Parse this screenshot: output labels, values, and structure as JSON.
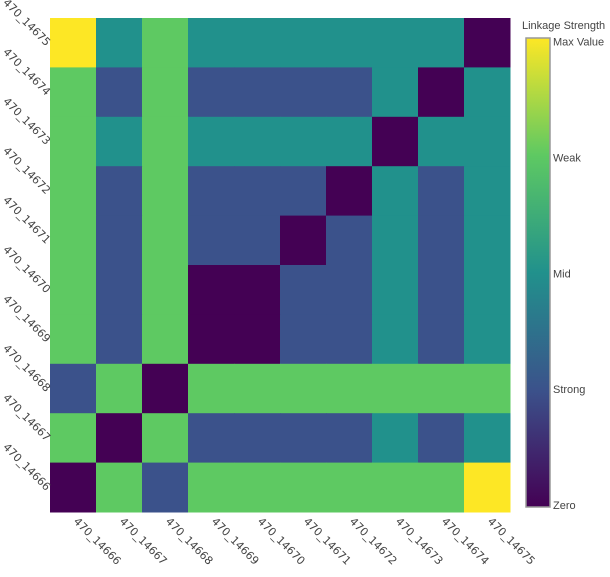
{
  "chart_data": {
    "type": "heatmap",
    "x_categories": [
      "470_14666",
      "470_14667",
      "470_14668",
      "470_14669",
      "470_14670",
      "470_14671",
      "470_14672",
      "470_14673",
      "470_14674",
      "470_14675"
    ],
    "y_categories": [
      "470_14675",
      "470_14674",
      "470_14673",
      "470_14672",
      "470_14671",
      "470_14670",
      "470_14669",
      "470_14668",
      "470_14667",
      "470_14666"
    ],
    "z": [
      [
        4,
        2,
        3,
        2,
        2,
        2,
        2,
        2,
        2,
        0
      ],
      [
        3,
        1,
        3,
        1,
        1,
        1,
        1,
        2,
        0,
        2
      ],
      [
        3,
        2,
        3,
        2,
        2,
        2,
        2,
        0,
        2,
        2
      ],
      [
        3,
        1,
        3,
        1,
        1,
        1,
        0,
        2,
        1,
        2
      ],
      [
        3,
        1,
        3,
        1,
        1,
        0,
        1,
        2,
        1,
        2
      ],
      [
        3,
        1,
        3,
        0,
        0,
        1,
        1,
        2,
        1,
        2
      ],
      [
        3,
        1,
        3,
        0,
        0,
        1,
        1,
        2,
        1,
        2
      ],
      [
        1,
        3,
        0,
        3,
        3,
        3,
        3,
        3,
        3,
        3
      ],
      [
        3,
        0,
        3,
        1,
        1,
        1,
        1,
        2,
        1,
        2
      ],
      [
        0,
        3,
        1,
        3,
        3,
        3,
        3,
        3,
        3,
        4
      ]
    ],
    "zlim": [
      0,
      4
    ],
    "colorscale": [
      "#440154",
      "#3b528b",
      "#21918c",
      "#5ec962",
      "#fde725"
    ],
    "colorbar": {
      "title": "Linkage Strength",
      "ticks": [
        {
          "value": 0,
          "label": "Zero"
        },
        {
          "value": 1,
          "label": "Strong"
        },
        {
          "value": 2,
          "label": "Mid"
        },
        {
          "value": 3,
          "label": "Weak"
        },
        {
          "value": 4,
          "label": "Max Value"
        }
      ]
    }
  }
}
